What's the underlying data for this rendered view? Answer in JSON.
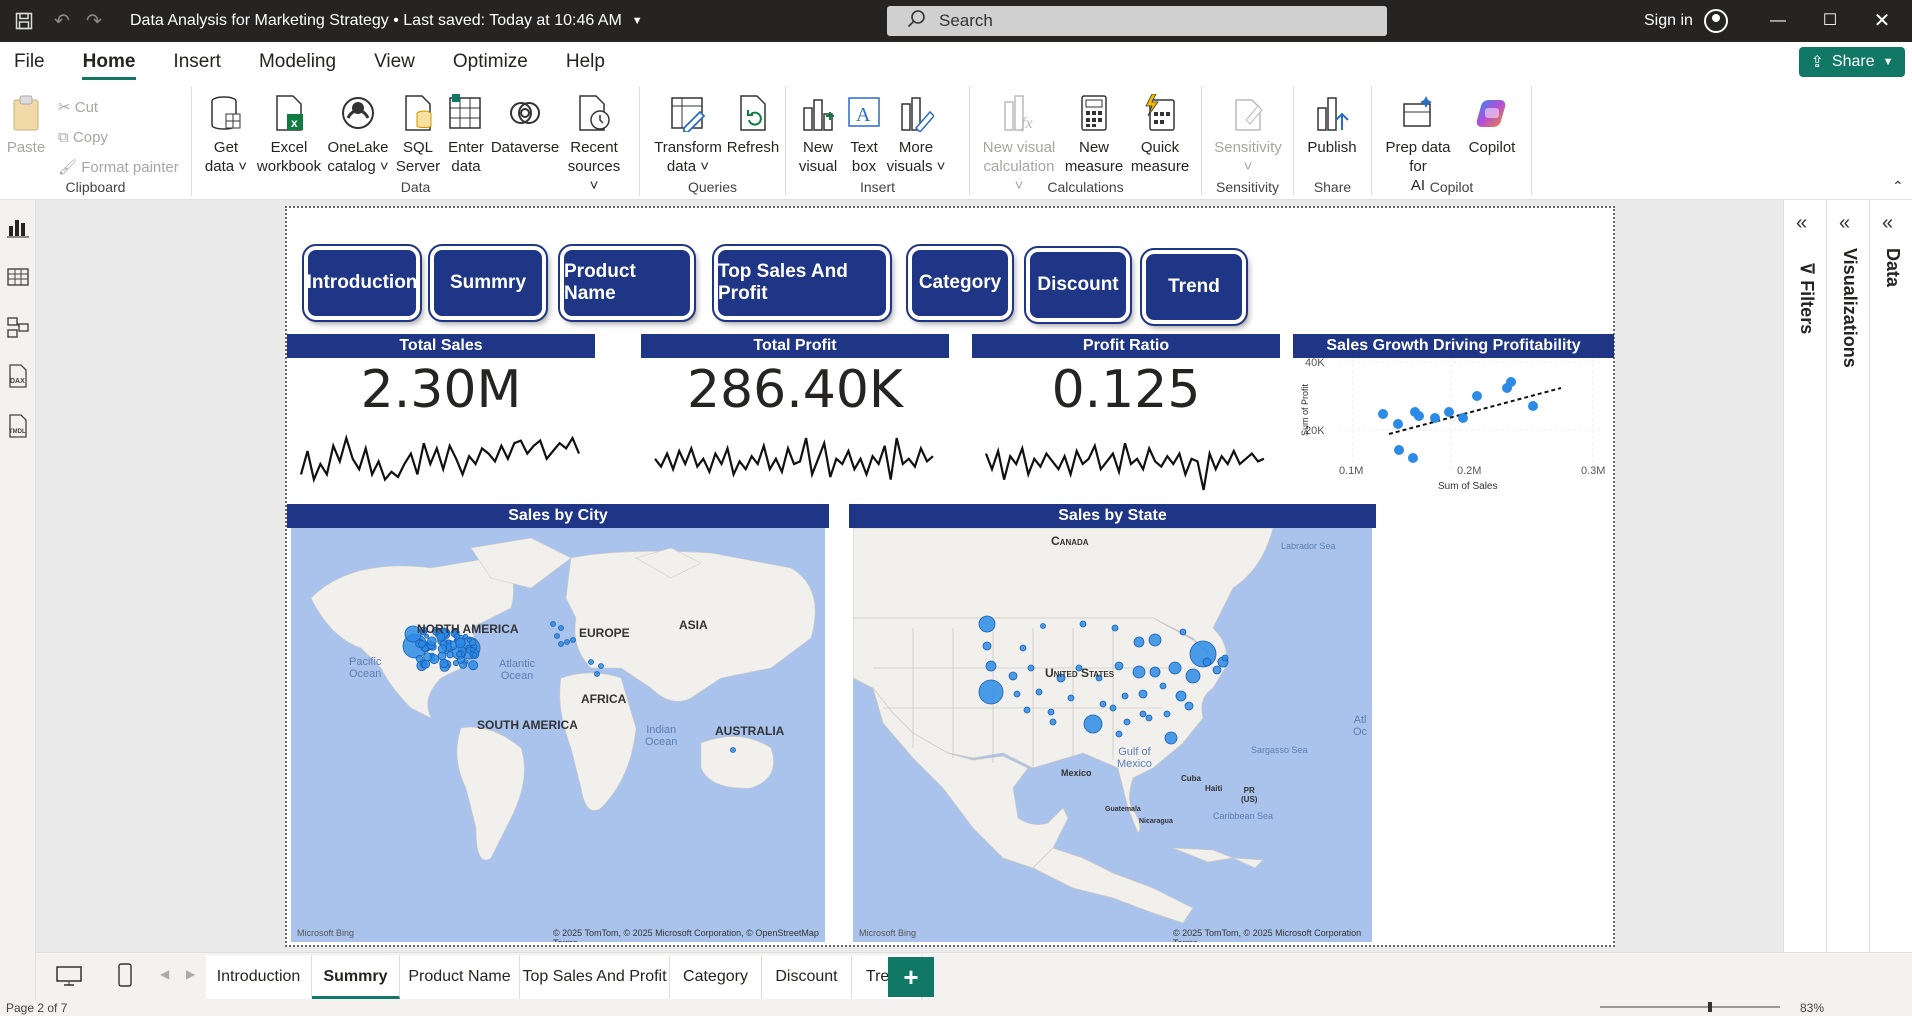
{
  "titlebar": {
    "doc_title": "Data Analysis for Marketing Strategy",
    "save_status": "• Last saved: Today at 10:46 AM",
    "search_placeholder": "Search",
    "sign_in": "Sign in"
  },
  "menu": {
    "items": [
      "File",
      "Home",
      "Insert",
      "Modeling",
      "View",
      "Optimize",
      "Help"
    ],
    "active": "Home",
    "share_label": "Share"
  },
  "ribbon": {
    "clipboard": {
      "label": "Clipboard",
      "paste": "Paste",
      "cut": "Cut",
      "copy": "Copy",
      "format_painter": "Format painter"
    },
    "data": {
      "label": "Data",
      "get_data": [
        "Get",
        "data"
      ],
      "excel": [
        "Excel",
        "workbook"
      ],
      "onelake": [
        "OneLake",
        "catalog"
      ],
      "sql": [
        "SQL",
        "Server"
      ],
      "enter": [
        "Enter",
        "data"
      ],
      "dataverse": "Dataverse",
      "recent": [
        "Recent",
        "sources"
      ]
    },
    "queries": {
      "label": "Queries",
      "transform": [
        "Transform",
        "data"
      ],
      "refresh": "Refresh"
    },
    "insert": {
      "label": "Insert",
      "new_visual": [
        "New",
        "visual"
      ],
      "text_box": [
        "Text",
        "box"
      ],
      "more_visuals": [
        "More",
        "visuals"
      ]
    },
    "calculations": {
      "label": "Calculations",
      "new_visual_calc": [
        "New visual",
        "calculation"
      ],
      "new_measure": [
        "New",
        "measure"
      ],
      "quick_measure": [
        "Quick",
        "measure"
      ]
    },
    "sensitivity": {
      "label": "Sensitivity",
      "sensitivity": "Sensitivity"
    },
    "share": {
      "label": "Share",
      "publish": "Publish"
    },
    "copilot": {
      "label": "Copilot",
      "prep": [
        "Prep data for",
        "AI"
      ],
      "copilot": "Copilot"
    }
  },
  "report": {
    "nav_buttons": [
      "Introduction",
      "Summry",
      "Product Name",
      "Top Sales And Profit",
      "Category",
      "Discount",
      "Trend"
    ],
    "kpis": [
      {
        "title": "Total Sales",
        "value": "2.30M",
        "spark": [
          0.3,
          0.75,
          0.2,
          0.5,
          0.3,
          0.85,
          0.55,
          1.0,
          0.6,
          0.4,
          0.8,
          0.3,
          0.55,
          0.2,
          0.35,
          0.25,
          0.5,
          0.7,
          0.3,
          0.9,
          0.5,
          0.8,
          0.4,
          0.85,
          0.6,
          0.3,
          0.65,
          0.5,
          0.8,
          0.7,
          0.55,
          0.85,
          0.6,
          0.9,
          0.95,
          0.7,
          0.85,
          0.95,
          0.6,
          0.75,
          0.9,
          0.8,
          1.0,
          0.7
        ]
      },
      {
        "title": "Total Profit",
        "value": "286.40K",
        "spark": [
          0.6,
          0.45,
          0.7,
          0.4,
          0.75,
          0.5,
          0.8,
          0.45,
          0.6,
          0.35,
          0.7,
          0.5,
          0.8,
          0.3,
          0.55,
          0.4,
          0.65,
          0.5,
          0.85,
          0.4,
          0.6,
          0.35,
          0.8,
          0.5,
          0.55,
          1.0,
          0.3,
          0.6,
          0.9,
          0.25,
          0.6,
          0.5,
          0.75,
          0.4,
          0.6,
          0.3,
          0.65,
          0.5,
          0.85,
          0.2,
          1.0,
          0.5,
          0.6,
          0.45,
          0.8,
          0.55,
          0.65
        ]
      },
      {
        "title": "Profit Ratio",
        "value": "0.125",
        "spark": [
          0.7,
          0.4,
          0.75,
          0.2,
          0.65,
          0.5,
          0.8,
          0.3,
          0.6,
          0.45,
          0.7,
          0.55,
          0.4,
          0.65,
          0.3,
          0.75,
          0.5,
          0.6,
          0.85,
          0.4,
          0.55,
          0.7,
          0.35,
          0.9,
          0.5,
          0.6,
          0.4,
          0.8,
          0.55,
          0.45,
          0.65,
          0.5,
          0.7,
          0.3,
          0.6,
          0.55,
          0.0,
          0.7,
          0.4,
          0.65,
          0.5,
          0.75,
          0.5,
          0.6,
          0.7,
          0.55,
          0.6
        ]
      }
    ],
    "scatter": {
      "title": "Sales Growth Driving Profitability",
      "xlabel": "Sum of Sales",
      "ylabel": "Sum of Profit",
      "x_ticks": [
        "0.1M",
        "0.2M",
        "0.3M"
      ],
      "y_ticks": [
        "40K",
        "20K"
      ]
    },
    "map_city": {
      "title": "Sales by City",
      "labels": [
        "NORTH AMERICA",
        "EUROPE",
        "ASIA",
        "AFRICA",
        "SOUTH AMERICA",
        "AUSTRALIA"
      ],
      "oceans": [
        "Pacific\nOcean",
        "Atlantic\nOcean",
        "Indian\nOcean"
      ],
      "attribution": "© 2025 TomTom, © 2025 Microsoft Corporation, © OpenStreetMap  Terms",
      "bing": "Microsoft Bing"
    },
    "map_state": {
      "title": "Sales by State",
      "labels": [
        "Canada",
        "United States",
        "Mexico",
        "Cuba",
        "Guatemala",
        "Haiti",
        "PR\n(US)",
        "Nicaragua"
      ],
      "oceans": [
        "Labrador Sea",
        "Gulf of\nMexico",
        "Sargasso Sea",
        "Caribbean Sea",
        "Atl\nOc"
      ],
      "attribution": "© 2025 TomTom, © 2025 Microsoft Corporation  Terms",
      "bing": "Microsoft Bing"
    }
  },
  "panes": {
    "filters": "Filters",
    "visualizations": "Visualizations",
    "data": "Data"
  },
  "tabs": {
    "items": [
      "Introduction",
      "Summry",
      "Product Name",
      "Top Sales And Profit",
      "Category",
      "Discount",
      "Trend"
    ],
    "active": "Summry",
    "add": "+"
  },
  "status": {
    "page": "Page 2 of 7",
    "zoom": "83%"
  },
  "colors": {
    "navy": "#1f3586",
    "teal": "#117865",
    "bubble": "#2b8be6",
    "ocean": "#a9c3ec",
    "land": "#f1f0ec"
  }
}
